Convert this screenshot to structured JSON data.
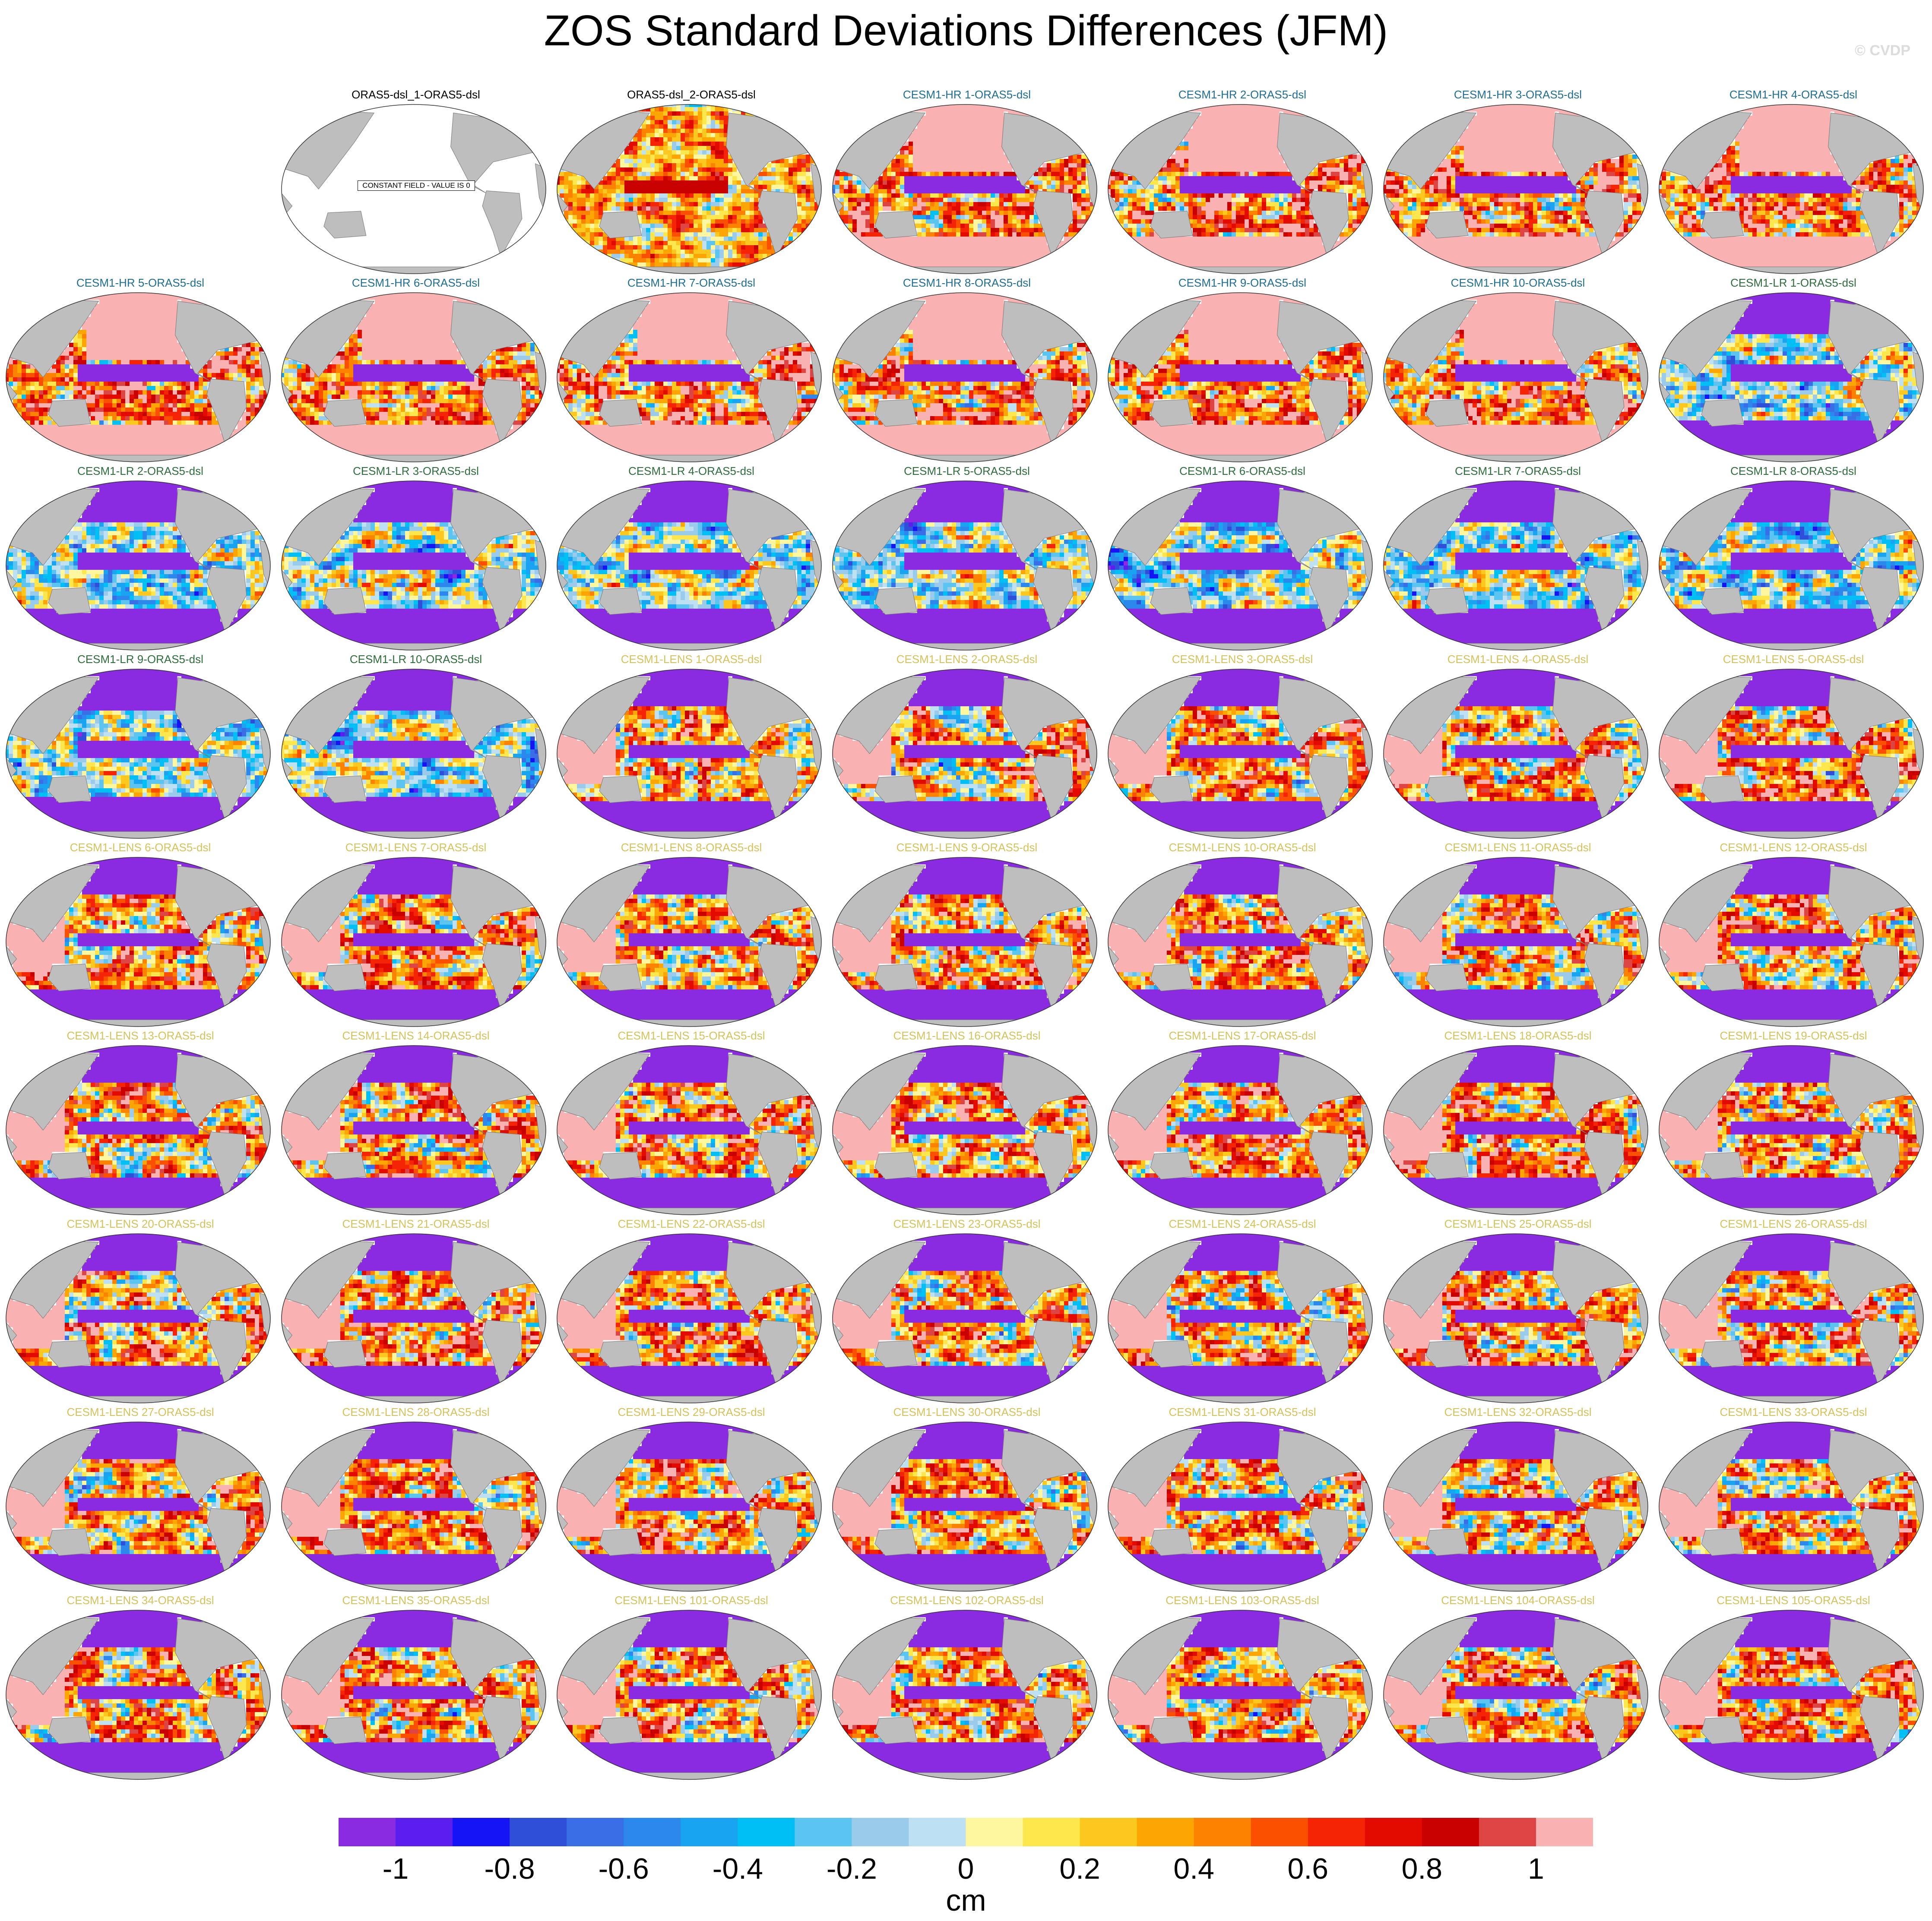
{
  "title": "ZOS Standard Deviations Differences (JFM)",
  "copyright": "© CVDP",
  "colors": {
    "land": "#bebebe",
    "no_data_ocean": "#ffffff",
    "label_obs": "#000000",
    "label_hr": "#1e6e96",
    "label_lr": "#2e6e3c",
    "label_lens": "#d6c25a"
  },
  "constant_field_text": "CONSTANT FIELD - VALUE IS 0",
  "panels": [
    {
      "label": "ORAS5-dsl_1-ORAS5-dsl",
      "group": "obs",
      "constant": true
    },
    {
      "label": "ORAS5-dsl_2-ORAS5-dsl",
      "group": "obs2"
    },
    {
      "label": "CESM1-HR 1-ORAS5-dsl",
      "group": "hr"
    },
    {
      "label": "CESM1-HR 2-ORAS5-dsl",
      "group": "hr"
    },
    {
      "label": "CESM1-HR 3-ORAS5-dsl",
      "group": "hr"
    },
    {
      "label": "CESM1-HR 4-ORAS5-dsl",
      "group": "hr"
    },
    {
      "label": "CESM1-HR 5-ORAS5-dsl",
      "group": "hr"
    },
    {
      "label": "CESM1-HR 6-ORAS5-dsl",
      "group": "hr"
    },
    {
      "label": "CESM1-HR 7-ORAS5-dsl",
      "group": "hr"
    },
    {
      "label": "CESM1-HR 8-ORAS5-dsl",
      "group": "hr"
    },
    {
      "label": "CESM1-HR 9-ORAS5-dsl",
      "group": "hr"
    },
    {
      "label": "CESM1-HR 10-ORAS5-dsl",
      "group": "hr"
    },
    {
      "label": "CESM1-LR 1-ORAS5-dsl",
      "group": "lr"
    },
    {
      "label": "CESM1-LR 2-ORAS5-dsl",
      "group": "lr"
    },
    {
      "label": "CESM1-LR 3-ORAS5-dsl",
      "group": "lr"
    },
    {
      "label": "CESM1-LR 4-ORAS5-dsl",
      "group": "lr"
    },
    {
      "label": "CESM1-LR 5-ORAS5-dsl",
      "group": "lr"
    },
    {
      "label": "CESM1-LR 6-ORAS5-dsl",
      "group": "lr"
    },
    {
      "label": "CESM1-LR 7-ORAS5-dsl",
      "group": "lr"
    },
    {
      "label": "CESM1-LR 8-ORAS5-dsl",
      "group": "lr"
    },
    {
      "label": "CESM1-LR 9-ORAS5-dsl",
      "group": "lr"
    },
    {
      "label": "CESM1-LR 10-ORAS5-dsl",
      "group": "lr"
    },
    {
      "label": "CESM1-LENS 1-ORAS5-dsl",
      "group": "lens"
    },
    {
      "label": "CESM1-LENS 2-ORAS5-dsl",
      "group": "lens"
    },
    {
      "label": "CESM1-LENS 3-ORAS5-dsl",
      "group": "lens"
    },
    {
      "label": "CESM1-LENS 4-ORAS5-dsl",
      "group": "lens"
    },
    {
      "label": "CESM1-LENS 5-ORAS5-dsl",
      "group": "lens"
    },
    {
      "label": "CESM1-LENS 6-ORAS5-dsl",
      "group": "lens"
    },
    {
      "label": "CESM1-LENS 7-ORAS5-dsl",
      "group": "lens"
    },
    {
      "label": "CESM1-LENS 8-ORAS5-dsl",
      "group": "lens"
    },
    {
      "label": "CESM1-LENS 9-ORAS5-dsl",
      "group": "lens"
    },
    {
      "label": "CESM1-LENS 10-ORAS5-dsl",
      "group": "lens"
    },
    {
      "label": "CESM1-LENS 11-ORAS5-dsl",
      "group": "lens"
    },
    {
      "label": "CESM1-LENS 12-ORAS5-dsl",
      "group": "lens"
    },
    {
      "label": "CESM1-LENS 13-ORAS5-dsl",
      "group": "lens"
    },
    {
      "label": "CESM1-LENS 14-ORAS5-dsl",
      "group": "lens"
    },
    {
      "label": "CESM1-LENS 15-ORAS5-dsl",
      "group": "lens"
    },
    {
      "label": "CESM1-LENS 16-ORAS5-dsl",
      "group": "lens"
    },
    {
      "label": "CESM1-LENS 17-ORAS5-dsl",
      "group": "lens"
    },
    {
      "label": "CESM1-LENS 18-ORAS5-dsl",
      "group": "lens"
    },
    {
      "label": "CESM1-LENS 19-ORAS5-dsl",
      "group": "lens"
    },
    {
      "label": "CESM1-LENS 20-ORAS5-dsl",
      "group": "lens"
    },
    {
      "label": "CESM1-LENS 21-ORAS5-dsl",
      "group": "lens"
    },
    {
      "label": "CESM1-LENS 22-ORAS5-dsl",
      "group": "lens"
    },
    {
      "label": "CESM1-LENS 23-ORAS5-dsl",
      "group": "lens"
    },
    {
      "label": "CESM1-LENS 24-ORAS5-dsl",
      "group": "lens"
    },
    {
      "label": "CESM1-LENS 25-ORAS5-dsl",
      "group": "lens"
    },
    {
      "label": "CESM1-LENS 26-ORAS5-dsl",
      "group": "lens"
    },
    {
      "label": "CESM1-LENS 27-ORAS5-dsl",
      "group": "lens"
    },
    {
      "label": "CESM1-LENS 28-ORAS5-dsl",
      "group": "lens"
    },
    {
      "label": "CESM1-LENS 29-ORAS5-dsl",
      "group": "lens"
    },
    {
      "label": "CESM1-LENS 30-ORAS5-dsl",
      "group": "lens"
    },
    {
      "label": "CESM1-LENS 31-ORAS5-dsl",
      "group": "lens"
    },
    {
      "label": "CESM1-LENS 32-ORAS5-dsl",
      "group": "lens"
    },
    {
      "label": "CESM1-LENS 33-ORAS5-dsl",
      "group": "lens"
    },
    {
      "label": "CESM1-LENS 34-ORAS5-dsl",
      "group": "lens"
    },
    {
      "label": "CESM1-LENS 35-ORAS5-dsl",
      "group": "lens"
    },
    {
      "label": "CESM1-LENS 101-ORAS5-dsl",
      "group": "lens"
    },
    {
      "label": "CESM1-LENS 102-ORAS5-dsl",
      "group": "lens"
    },
    {
      "label": "CESM1-LENS 103-ORAS5-dsl",
      "group": "lens"
    },
    {
      "label": "CESM1-LENS 104-ORAS5-dsl",
      "group": "lens"
    },
    {
      "label": "CESM1-LENS 105-ORAS5-dsl",
      "group": "lens"
    }
  ],
  "colorbar": {
    "unit": "cm",
    "colors": [
      "#8a2be2",
      "#5a1fef",
      "#1414f5",
      "#2f4fd9",
      "#3a6ee6",
      "#2d88ee",
      "#18a4f0",
      "#00bff5",
      "#5cc4f0",
      "#9acbea",
      "#bde0f2",
      "#fff7a0",
      "#fde74c",
      "#fcc820",
      "#fca503",
      "#fc8200",
      "#fb5000",
      "#f52405",
      "#e30a00",
      "#c80000",
      "#dd4444",
      "#f9b1b1"
    ],
    "tick_labels": [
      "-1",
      "-0.8",
      "-0.6",
      "-0.4",
      "-0.2",
      "0",
      "0.2",
      "0.4",
      "0.6",
      "0.8",
      "1"
    ]
  }
}
